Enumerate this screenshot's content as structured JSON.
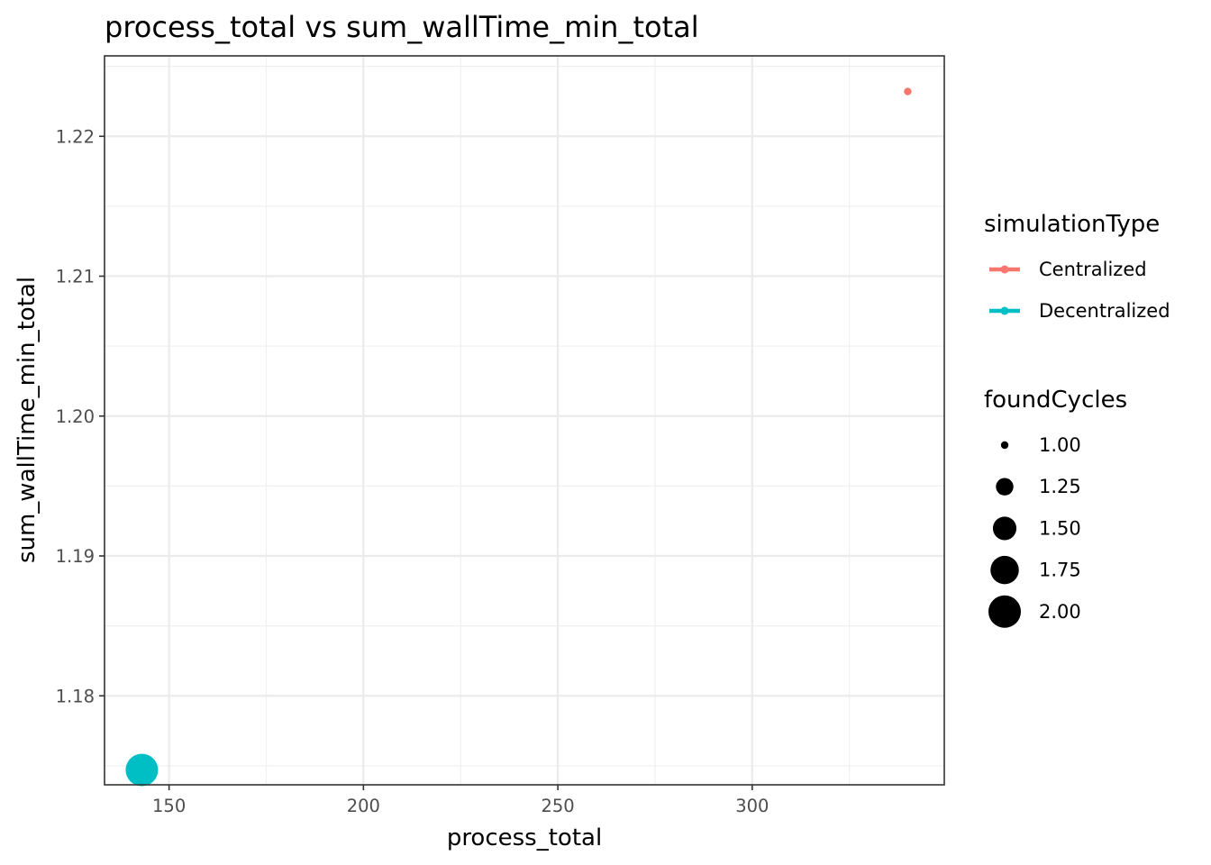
{
  "chart_data": {
    "type": "scatter",
    "title": "process_total  vs  sum_wallTime_min_total",
    "xlabel": "process_total",
    "ylabel": "sum_wallTime_min_total",
    "xlim": [
      133.4,
      349.4
    ],
    "ylim": [
      1.17364,
      1.22575
    ],
    "x_ticks": [
      150,
      200,
      250,
      300
    ],
    "x_tick_labels": [
      "150",
      "200",
      "250",
      "300"
    ],
    "y_ticks": [
      1.18,
      1.19,
      1.2,
      1.21,
      1.22
    ],
    "y_tick_labels": [
      "1.18",
      "1.19",
      "1.20",
      "1.21",
      "1.22"
    ],
    "grid": true,
    "legend_position": "right",
    "series": [
      {
        "name": "Centralized",
        "color": "#F8766D",
        "points": [
          {
            "x": 340,
            "y": 1.2232,
            "foundCycles": 1.0
          }
        ]
      },
      {
        "name": "Decentralized",
        "color": "#00BFC4",
        "points": [
          {
            "x": 143,
            "y": 1.1747,
            "foundCycles": 2.0
          }
        ]
      }
    ],
    "color_legend": {
      "title": "simulationType",
      "items": [
        {
          "label": "Centralized",
          "color": "#F8766D"
        },
        {
          "label": "Decentralized",
          "color": "#00BFC4"
        }
      ]
    },
    "size_legend": {
      "title": "foundCycles",
      "items": [
        {
          "label": "1.00",
          "value": 1.0
        },
        {
          "label": "1.25",
          "value": 1.25
        },
        {
          "label": "1.50",
          "value": 1.5
        },
        {
          "label": "1.75",
          "value": 1.75
        },
        {
          "label": "2.00",
          "value": 2.0
        }
      ]
    }
  }
}
